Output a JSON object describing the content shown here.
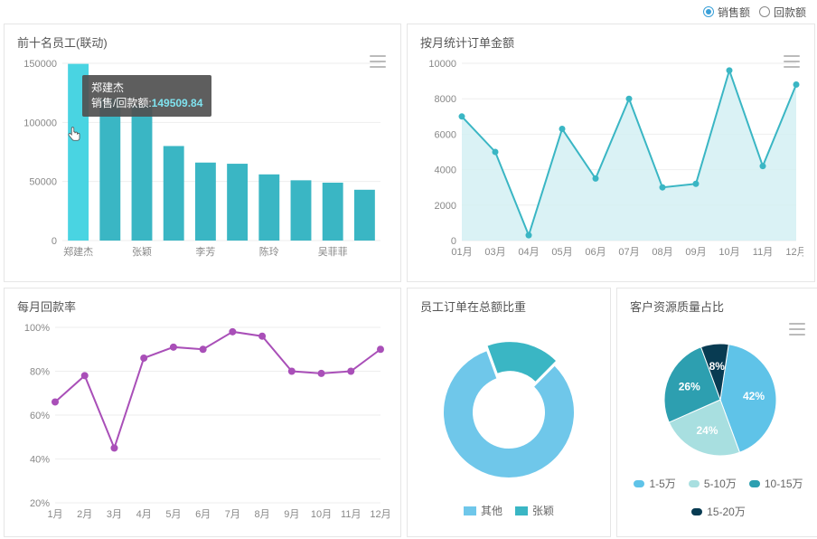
{
  "topbar": {
    "options": [
      {
        "label": "销售额",
        "checked": true
      },
      {
        "label": "回款额",
        "checked": false
      }
    ]
  },
  "top10_chart": {
    "title": "前十名员工(联动)",
    "type": "bar",
    "categories_visible": [
      "郑建杰",
      "张颖",
      "李芳",
      "陈玲",
      "吴菲菲"
    ],
    "values": [
      149509.84,
      120000,
      115000,
      80000,
      66000,
      65000,
      56000,
      51000,
      49000,
      43000
    ],
    "highlight_index": 0,
    "bar_color": "#3ab6c4",
    "highlight_color": "#49d4e2",
    "ylim": [
      0,
      150000
    ],
    "ytick_step": 50000,
    "grid_color": "#eeeeee",
    "tooltip": {
      "name": "郑建杰",
      "metric": "销售/回款额:",
      "value": "149509.84"
    }
  },
  "monthly_amount": {
    "title": "按月统计订单金额",
    "type": "area-line",
    "xlabels": [
      "01月",
      "03月",
      "04月",
      "05月",
      "06月",
      "07月",
      "08月",
      "09月",
      "10月",
      "11月",
      "12月"
    ],
    "values_by_month": [
      7000,
      5000,
      300,
      6300,
      3500,
      8000,
      3000,
      3200,
      9600,
      4200,
      8800
    ],
    "line_color": "#3ab6c4",
    "fill_color": "#d1eff3",
    "marker_color": "#3ab6c4",
    "ylim": [
      0,
      10000
    ],
    "ytick_step": 2000
  },
  "return_rate": {
    "title": "每月回款率",
    "type": "line",
    "xlabels": [
      "1月",
      "2月",
      "3月",
      "4月",
      "5月",
      "6月",
      "7月",
      "8月",
      "9月",
      "10月",
      "11月",
      "12月"
    ],
    "values_pct": [
      66,
      78,
      45,
      86,
      91,
      90,
      98,
      96,
      80,
      79,
      80,
      90
    ],
    "line_color": "#a94fb8",
    "marker_fill": "#a94fb8",
    "ylim": [
      20,
      100
    ],
    "ytick_step": 20
  },
  "employee_share": {
    "title": "员工订单在总额比重",
    "type": "donut",
    "slices": [
      {
        "label": "其他",
        "value": 82,
        "color": "#6fc7ea"
      },
      {
        "label": "张颖",
        "value": 18,
        "color": "#3ab6c4"
      }
    ],
    "legend": [
      "其他",
      "张颖"
    ]
  },
  "customer_quality": {
    "title": "客户资源质量占比",
    "type": "pie",
    "slices": [
      {
        "label": "1-5万",
        "pct": 42,
        "color": "#5fc3e8"
      },
      {
        "label": "5-10万",
        "pct": 24,
        "color": "#a8dfe0"
      },
      {
        "label": "10-15万",
        "pct": 26,
        "color": "#2d9fb0"
      },
      {
        "label": "15-20万",
        "pct": 8,
        "color": "#083b52"
      }
    ]
  }
}
